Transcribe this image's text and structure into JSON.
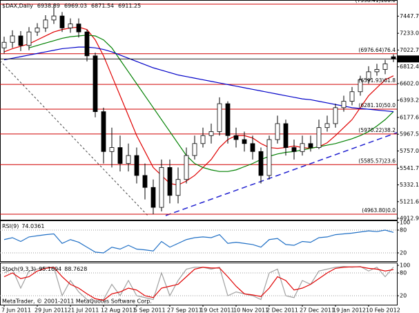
{
  "chart_data": [
    {
      "type": "candlestick",
      "title": "$DAX,Daily",
      "categories": [
        "7 Jun 2011",
        null,
        null,
        null,
        "29 Jun 2011",
        null,
        null,
        null,
        "21 Jul 2011",
        null,
        null,
        null,
        "12 Aug 2011",
        null,
        null,
        null,
        "5 Sep 2011",
        null,
        null,
        null,
        "27 Sep 2011",
        null,
        null,
        null,
        "19 Oct 2011",
        null,
        null,
        null,
        "10 Nov 2011",
        null,
        null,
        null,
        "2 Dec 2011",
        null,
        null,
        null,
        "27 Dec 2011",
        null,
        null,
        null,
        "19 Jan 2012",
        null,
        null,
        null,
        "10 Feb 2012",
        null,
        null,
        null
      ],
      "open": [
        7050,
        7120,
        7200,
        7080,
        7250,
        7300,
        7400,
        7450,
        7300,
        7350,
        7250,
        6950,
        6250,
        5750,
        5800,
        5600,
        5700,
        5450,
        5300,
        5050,
        5550,
        5200,
        5400,
        5700,
        5850,
        5950,
        6000,
        6350,
        5950,
        5900,
        5850,
        5750,
        5450,
        5900,
        6100,
        5800,
        5750,
        5850,
        5800,
        6050,
        6100,
        6300,
        6380,
        6500,
        6650,
        6750,
        6780,
        6938.89
      ],
      "high": [
        7190,
        7270,
        7260,
        7310,
        7360,
        7460,
        7598.41,
        7500,
        7420,
        7420,
        7280,
        6990,
        6300,
        6050,
        5950,
        5850,
        5800,
        5600,
        5400,
        5650,
        5650,
        5550,
        5800,
        5950,
        6050,
        6100,
        6430,
        6380,
        6050,
        6000,
        5950,
        5800,
        5950,
        6200,
        6150,
        5900,
        5950,
        5950,
        6150,
        6200,
        6350,
        6450,
        6560,
        6700,
        6820,
        6850,
        6900,
        6969.03
      ],
      "low": [
        6980,
        7050,
        7010,
        7020,
        7200,
        7250,
        7350,
        7250,
        7240,
        7180,
        6880,
        6180,
        5600,
        5550,
        5500,
        5500,
        5350,
        5150,
        4963.8,
        5000,
        5100,
        5100,
        5350,
        5650,
        5800,
        5850,
        5950,
        5850,
        5800,
        5750,
        5650,
        5350,
        5400,
        5850,
        5700,
        5650,
        5700,
        5750,
        5780,
        6000,
        6050,
        6250,
        6330,
        6450,
        6600,
        6700,
        6720,
        6871.54
      ],
      "close": [
        7120,
        7200,
        7080,
        7250,
        7300,
        7400,
        7450,
        7300,
        7350,
        7250,
        6950,
        6250,
        5750,
        5800,
        5600,
        5700,
        5450,
        5300,
        5050,
        5550,
        5200,
        5400,
        5700,
        5850,
        5950,
        6000,
        6350,
        5950,
        5900,
        5850,
        5750,
        5450,
        5900,
        6100,
        5800,
        5750,
        5850,
        5800,
        6050,
        6100,
        6300,
        6380,
        6500,
        6650,
        6750,
        6780,
        6850,
        6911.25
      ],
      "series": [
        {
          "color": "#e00000",
          "values": [
            7000,
            7040,
            7070,
            7100,
            7150,
            7200,
            7250,
            7280,
            7300,
            7310,
            7280,
            7150,
            6950,
            6700,
            6450,
            6200,
            5950,
            5750,
            5550,
            5450,
            5350,
            5330,
            5380,
            5450,
            5550,
            5650,
            5800,
            5900,
            5950,
            5950,
            5920,
            5850,
            5800,
            5790,
            5800,
            5820,
            5800,
            5790,
            5810,
            5860,
            5950,
            6050,
            6150,
            6300,
            6450,
            6550,
            6650,
            6700
          ]
        },
        {
          "color": "#008000",
          "values": [
            null,
            null,
            null,
            7050,
            7080,
            7110,
            7140,
            7170,
            7190,
            7200,
            7210,
            7200,
            7150,
            7050,
            6900,
            6750,
            6600,
            6450,
            6300,
            6150,
            6000,
            5850,
            5700,
            5600,
            5550,
            5520,
            5500,
            5500,
            5520,
            5560,
            5600,
            5650,
            5690,
            5720,
            5740,
            5750,
            5770,
            5790,
            5810,
            5830,
            5850,
            5880,
            5910,
            5950,
            6000,
            6070,
            6150,
            6250
          ]
        },
        {
          "color": "#0000c8",
          "values": [
            6900,
            6920,
            6940,
            6960,
            6980,
            7000,
            7020,
            7040,
            7050,
            7060,
            7060,
            7050,
            7030,
            7000,
            6960,
            6920,
            6880,
            6840,
            6800,
            6770,
            6740,
            6710,
            6690,
            6670,
            6650,
            6630,
            6610,
            6590,
            6570,
            6550,
            6530,
            6510,
            6490,
            6470,
            6450,
            6430,
            6410,
            6400,
            6380,
            6360,
            6340,
            6320,
            6300,
            6290,
            6280,
            6270,
            6260,
            6250
          ]
        }
      ],
      "levels": [
        {
          "value": 7598.41,
          "label": "(7598.41)100.0"
        },
        {
          "value": 6976.64,
          "label": "(6976.64)76.4"
        },
        {
          "value": 6591.93,
          "label": "(6591.93)61.8"
        },
        {
          "value": 6281.1,
          "label": "(6281.10)50.0"
        },
        {
          "value": 5970.22,
          "label": "(5970.22)38.2"
        },
        {
          "value": 5585.57,
          "label": "(5585.57)23.6"
        },
        {
          "value": 4963.8,
          "label": "(4963.80)0.0"
        }
      ],
      "level_color": "#d00000",
      "ylim": [
        4895,
        7633
      ],
      "yticks": [
        7447.75,
        7233.09,
        7022.79,
        {
          "value": 6812.4,
          "label": "6812.40"
        },
        6602.06,
        6393.29,
        {
          "value": 6177.6,
          "label": "6177.60"
        },
        5967.56,
        5757.03,
        {
          "value": 5541.7,
          "label": "5541.70"
        },
        {
          "value": 5332.1,
          "label": "5332.10"
        },
        5121.69,
        {
          "value": 4912.9,
          "label": "4912.90"
        }
      ]
    },
    {
      "type": "line",
      "title": "RSI(9)",
      "series": [
        {
          "color": "#1f6fc5",
          "values": [
            55,
            60,
            50,
            62,
            65,
            68,
            70,
            45,
            55,
            48,
            35,
            22,
            20,
            35,
            30,
            40,
            30,
            28,
            25,
            50,
            35,
            45,
            55,
            60,
            62,
            60,
            68,
            45,
            48,
            45,
            42,
            35,
            55,
            58,
            42,
            40,
            50,
            48,
            60,
            62,
            68,
            70,
            72,
            75,
            78,
            76,
            80,
            74.0361
          ]
        }
      ],
      "ylim": [
        0,
        100
      ],
      "yticks": [
        20,
        80,
        100
      ],
      "grid": true
    },
    {
      "type": "line",
      "title": "Stoch(9,3,3)",
      "series": [
        {
          "color": "#a0a0a0",
          "values": [
            80,
            90,
            40,
            85,
            90,
            95,
            95,
            20,
            60,
            30,
            10,
            5,
            10,
            50,
            20,
            60,
            20,
            15,
            10,
            80,
            20,
            60,
            90,
            95,
            95,
            90,
            95,
            20,
            30,
            25,
            20,
            10,
            80,
            90,
            20,
            15,
            60,
            50,
            85,
            90,
            95,
            97,
            95,
            97,
            85,
            95,
            70,
            95.1694
          ]
        },
        {
          "color": "#e00000",
          "values": [
            70,
            80,
            65,
            70,
            85,
            92,
            95,
            70,
            50,
            40,
            25,
            12,
            8,
            25,
            30,
            40,
            35,
            20,
            15,
            40,
            45,
            50,
            70,
            90,
            95,
            93,
            93,
            70,
            45,
            25,
            22,
            18,
            40,
            70,
            60,
            35,
            40,
            50,
            65,
            80,
            92,
            95,
            96,
            96,
            92,
            90,
            85,
            88.7628
          ]
        }
      ],
      "ylim": [
        0,
        100
      ],
      "yticks": [
        20,
        80,
        100
      ],
      "grid": true
    }
  ],
  "footer": "MetaTrader, © 2001-2011 MetaQuotes Software Corp."
}
